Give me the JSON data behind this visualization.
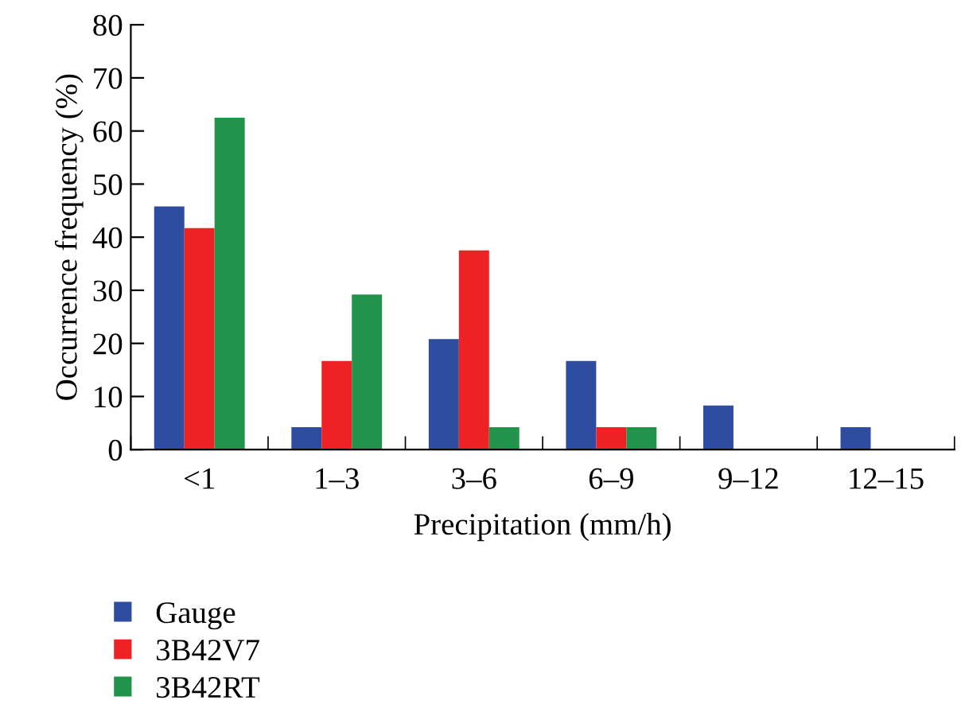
{
  "chart_data": {
    "type": "bar",
    "xlabel": "Precipitation (mm/h)",
    "ylabel": "Occurrence frequency (%)",
    "categories": [
      "<1",
      "1–3",
      "3–6",
      "6–9",
      "9–12",
      "12–15"
    ],
    "series": [
      {
        "name": "Gauge",
        "color": "#2e4da0",
        "values": [
          45.8,
          4.2,
          20.8,
          16.7,
          8.3,
          4.2
        ]
      },
      {
        "name": "3B42V7",
        "color": "#ee2224",
        "values": [
          41.7,
          16.7,
          37.5,
          4.2,
          0,
          0
        ]
      },
      {
        "name": "3B42RT",
        "color": "#21934a",
        "values": [
          62.5,
          29.2,
          4.2,
          4.2,
          0,
          0
        ]
      }
    ],
    "ylim": [
      0,
      80
    ],
    "yticks": [
      0,
      10,
      20,
      30,
      40,
      50,
      60,
      70,
      80
    ],
    "grid": false,
    "legend": "bottom left"
  }
}
